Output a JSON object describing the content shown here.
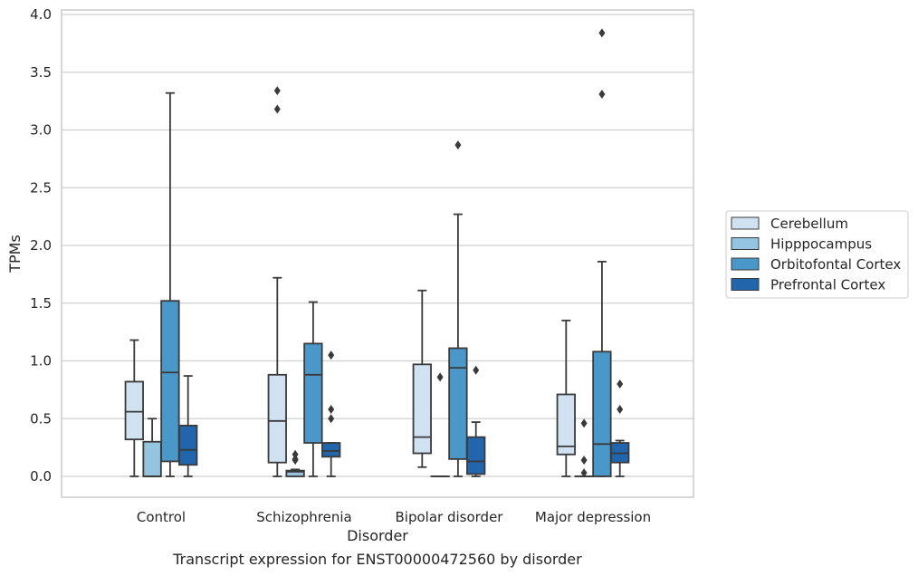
{
  "chart_data": {
    "type": "box",
    "title": "Transcript expression for ENST00000472560 by disorder",
    "xlabel": "Disorder",
    "ylabel": "TPMs",
    "categories": [
      "Control",
      "Schizophrenia",
      "Bipolar disorder",
      "Major depression"
    ],
    "ylim": [
      -0.18,
      4.04
    ],
    "yticks": [
      0.0,
      0.5,
      1.0,
      1.5,
      2.0,
      2.5,
      3.0,
      3.5,
      4.0
    ],
    "ytick_labels": [
      "0.0",
      "0.5",
      "1.0",
      "1.5",
      "2.0",
      "2.5",
      "3.0",
      "3.5",
      "4.0"
    ],
    "grid": "horizontal",
    "legend_position": "right",
    "series": [
      {
        "name": "Cerebellum",
        "color": "#d0e1f2",
        "boxes": [
          {
            "whisker_low": 0.0,
            "q1": 0.32,
            "median": 0.56,
            "q3": 0.82,
            "whisker_high": 1.18,
            "outliers": []
          },
          {
            "whisker_low": 0.0,
            "q1": 0.12,
            "median": 0.48,
            "q3": 0.88,
            "whisker_high": 1.72,
            "outliers": [
              3.18,
              3.34
            ]
          },
          {
            "whisker_low": 0.08,
            "q1": 0.2,
            "median": 0.34,
            "q3": 0.97,
            "whisker_high": 1.61,
            "outliers": []
          },
          {
            "whisker_low": 0.0,
            "q1": 0.19,
            "median": 0.26,
            "q3": 0.71,
            "whisker_high": 1.35,
            "outliers": []
          }
        ]
      },
      {
        "name": "Hipppocampus",
        "color": "#94c4df",
        "boxes": [
          {
            "whisker_low": 0.0,
            "q1": 0.0,
            "median": 0.0,
            "q3": 0.3,
            "whisker_high": 0.5,
            "outliers": []
          },
          {
            "whisker_low": 0.0,
            "q1": 0.0,
            "median": 0.04,
            "q3": 0.05,
            "whisker_high": 0.06,
            "outliers": [
              0.14,
              0.15,
              0.19
            ]
          },
          {
            "whisker_low": 0.0,
            "q1": 0.0,
            "median": 0.0,
            "q3": 0.0,
            "whisker_high": 0.0,
            "outliers": [
              0.86
            ]
          },
          {
            "whisker_low": 0.0,
            "q1": 0.0,
            "median": 0.0,
            "q3": 0.0,
            "whisker_high": 0.0,
            "outliers": [
              0.03,
              0.14,
              0.46
            ]
          }
        ]
      },
      {
        "name": "Orbitofontal Cortex",
        "color": "#4a98c9",
        "boxes": [
          {
            "whisker_low": 0.0,
            "q1": 0.13,
            "median": 0.9,
            "q3": 1.52,
            "whisker_high": 3.32,
            "outliers": []
          },
          {
            "whisker_low": 0.0,
            "q1": 0.29,
            "median": 0.88,
            "q3": 1.15,
            "whisker_high": 1.51,
            "outliers": []
          },
          {
            "whisker_low": 0.0,
            "q1": 0.15,
            "median": 0.94,
            "q3": 1.11,
            "whisker_high": 2.27,
            "outliers": [
              2.87
            ]
          },
          {
            "whisker_low": 0.0,
            "q1": 0.0,
            "median": 0.28,
            "q3": 1.08,
            "whisker_high": 1.86,
            "outliers": [
              3.31,
              3.84
            ]
          }
        ]
      },
      {
        "name": "Prefrontal Cortex",
        "color": "#2166ac",
        "boxes": [
          {
            "whisker_low": 0.0,
            "q1": 0.1,
            "median": 0.23,
            "q3": 0.44,
            "whisker_high": 0.87,
            "outliers": []
          },
          {
            "whisker_low": 0.0,
            "q1": 0.17,
            "median": 0.22,
            "q3": 0.29,
            "whisker_high": 0.29,
            "outliers": [
              0.5,
              0.58,
              1.05
            ]
          },
          {
            "whisker_low": 0.0,
            "q1": 0.02,
            "median": 0.13,
            "q3": 0.34,
            "whisker_high": 0.47,
            "outliers": [
              0.92
            ]
          },
          {
            "whisker_low": 0.0,
            "q1": 0.12,
            "median": 0.2,
            "q3": 0.29,
            "whisker_high": 0.31,
            "outliers": [
              0.58,
              0.8
            ]
          }
        ]
      }
    ]
  }
}
